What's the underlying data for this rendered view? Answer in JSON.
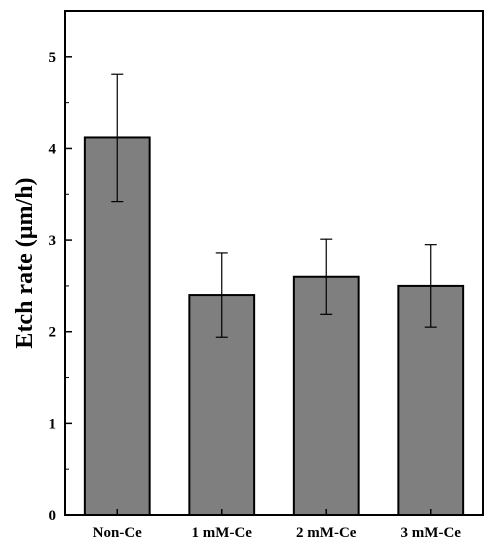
{
  "chart_data": {
    "type": "bar",
    "title": "",
    "xlabel": "",
    "ylabel": "Etch rate (µm/h)",
    "categories": [
      "Non-Ce",
      "1 mM-Ce",
      "2 mM-Ce",
      "3 mM-Ce"
    ],
    "values": [
      4.12,
      2.4,
      2.6,
      2.5
    ],
    "error_low": [
      3.42,
      1.94,
      2.19,
      2.05
    ],
    "error_high": [
      4.81,
      2.86,
      3.01,
      2.95
    ],
    "ylim": [
      0,
      5.5
    ],
    "yticks": [
      0,
      1,
      2,
      3,
      4,
      5
    ],
    "grid": false,
    "bar_color": "#7f7f7f",
    "edge_color": "#000000"
  }
}
